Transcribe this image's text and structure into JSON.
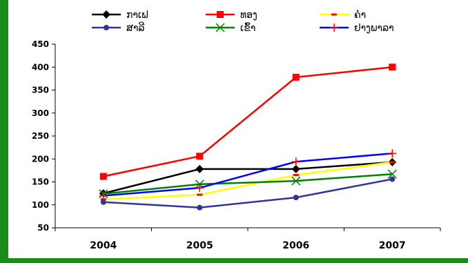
{
  "chart_data": {
    "type": "line",
    "categories": [
      "2004",
      "2005",
      "2006",
      "2007"
    ],
    "ylim": [
      50,
      450
    ],
    "yticks": [
      50,
      100,
      150,
      200,
      250,
      300,
      350,
      400,
      450
    ],
    "grid": false,
    "legend_position": "top",
    "frame_color": "#008000",
    "series": [
      {
        "name": "ກາເຟ",
        "color": "#000000",
        "marker": "diamond",
        "values": [
          125,
          178,
          178,
          193
        ]
      },
      {
        "name": "ທອງ",
        "color": "#ff0000",
        "marker": "square",
        "values": [
          162,
          206,
          378,
          400
        ]
      },
      {
        "name": "ຄຳ",
        "color": "#ffff00",
        "marker": "dash",
        "values": [
          112,
          122,
          165,
          193
        ]
      },
      {
        "name": "ສາລີ",
        "color": "#333399",
        "marker": "circle",
        "values": [
          106,
          94,
          116,
          156
        ]
      },
      {
        "name": "ເຂົ້າ",
        "color": "#008000",
        "marker": "x",
        "values": [
          124,
          145,
          152,
          167
        ]
      },
      {
        "name": "ຢາງພາລາ",
        "color": "#0000ff",
        "marker": "plus",
        "values": [
          120,
          137,
          194,
          212
        ]
      }
    ]
  }
}
